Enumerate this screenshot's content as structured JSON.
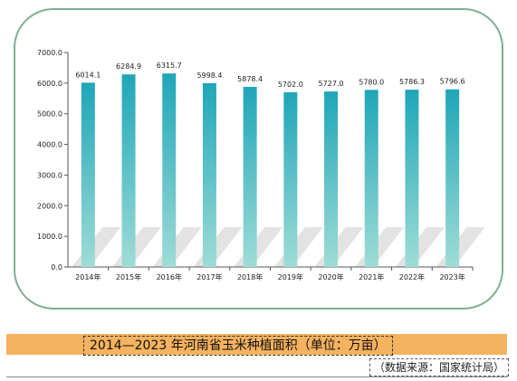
{
  "chart_data": {
    "type": "bar",
    "title": "",
    "xlabel": "",
    "ylabel": "",
    "categories": [
      "2014年",
      "2015年",
      "2016年",
      "2017年",
      "2018年",
      "2019年",
      "2020年",
      "2021年",
      "2022年",
      "2023年"
    ],
    "values": [
      6014.1,
      6284.9,
      6315.7,
      5998.4,
      5878.4,
      5702.0,
      5727.0,
      5780.0,
      5786.3,
      5796.6
    ],
    "value_labels": [
      "6014.1",
      "6284.9",
      "6315.7",
      "5998.4",
      "5878.4",
      "5702.0",
      "5727.0",
      "5780.0",
      "5786.3",
      "5796.6"
    ],
    "ylim": [
      0,
      7000
    ],
    "yticks": [
      0,
      1000,
      2000,
      3000,
      4000,
      5000,
      6000,
      7000
    ],
    "ytick_labels": [
      "0.0",
      "1000.0",
      "2000.0",
      "3000.0",
      "4000.0",
      "5000.0",
      "6000.0",
      "7000.0"
    ],
    "grid": false,
    "legend": "none",
    "bar_color_top": "#1fa6b8",
    "bar_color_bottom": "#9fdcd6",
    "shadow_color": "#e3e3e3"
  },
  "caption": {
    "text": "2014—2023 年河南省玉米种植面积（单位：万亩）",
    "bar_color": "#f5b25f"
  },
  "source": {
    "text": "（数据来源：国家统计局）"
  },
  "frame": {
    "border_color": "#7fae8e"
  }
}
